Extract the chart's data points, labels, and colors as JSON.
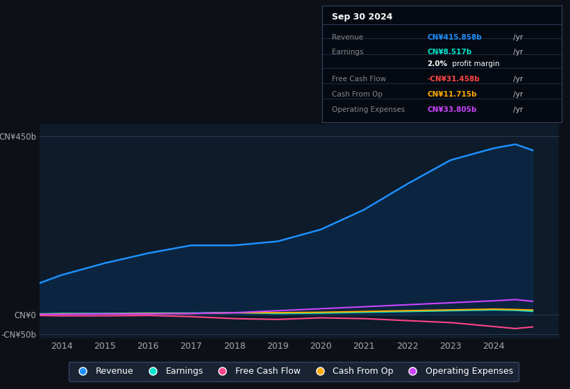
{
  "background_color": "#0d1117",
  "plot_bg_color": "#0d1b2a",
  "xlim": [
    2013.5,
    2025.5
  ],
  "ylim": [
    -60,
    480
  ],
  "yticks": [
    -50,
    0,
    450
  ],
  "ytick_labels": [
    "-CN¥50b",
    "CN¥0",
    "CN¥450b"
  ],
  "xticks": [
    2014,
    2015,
    2016,
    2017,
    2018,
    2019,
    2020,
    2021,
    2022,
    2023,
    2024
  ],
  "legend": [
    {
      "label": "Revenue",
      "color": "#1e90ff"
    },
    {
      "label": "Earnings",
      "color": "#00e5cc"
    },
    {
      "label": "Free Cash Flow",
      "color": "#ff4488"
    },
    {
      "label": "Cash From Op",
      "color": "#ffaa00"
    },
    {
      "label": "Operating Expenses",
      "color": "#cc44ff"
    }
  ],
  "revenue": [
    80,
    100,
    130,
    155,
    175,
    175,
    185,
    215,
    265,
    330,
    390,
    420,
    430,
    415
  ],
  "earnings": [
    2,
    3,
    3,
    4,
    4,
    5,
    3,
    4,
    6,
    8,
    10,
    12,
    11,
    8.5
  ],
  "free_cash_flow": [
    -2,
    -3,
    -3,
    -2,
    -5,
    -10,
    -12,
    -8,
    -10,
    -15,
    -20,
    -30,
    -35,
    -31
  ],
  "cash_from_op": [
    1,
    2,
    2,
    3,
    3,
    5,
    5,
    6,
    8,
    10,
    12,
    14,
    13,
    11.7
  ],
  "operating_expenses": [
    1,
    1,
    2,
    2,
    3,
    5,
    10,
    15,
    20,
    25,
    30,
    35,
    38,
    33.8
  ],
  "years": [
    2013.5,
    2014,
    2015,
    2016,
    2017,
    2018,
    2019,
    2020,
    2021,
    2022,
    2023,
    2024,
    2024.5,
    2024.9
  ],
  "info_title": "Sep 30 2024",
  "info_rows": [
    {
      "label": "Revenue",
      "val_colored": "CN¥415.858b",
      "val_plain": " /yr",
      "color": "#1e90ff",
      "is_margin": false
    },
    {
      "label": "Earnings",
      "val_colored": "CN¥8.517b",
      "val_plain": " /yr",
      "color": "#00e5cc",
      "is_margin": false
    },
    {
      "label": "",
      "val_colored": "2.0%",
      "val_plain": " profit margin",
      "color": "#ffffff",
      "is_margin": true
    },
    {
      "label": "Free Cash Flow",
      "val_colored": "-CN¥31.458b",
      "val_plain": " /yr",
      "color": "#ff4444",
      "is_margin": false
    },
    {
      "label": "Cash From Op",
      "val_colored": "CN¥11.715b",
      "val_plain": " /yr",
      "color": "#ffaa00",
      "is_margin": false
    },
    {
      "label": "Operating Expenses",
      "val_colored": "CN¥33.805b",
      "val_plain": " /yr",
      "color": "#cc44ff",
      "is_margin": false
    }
  ]
}
